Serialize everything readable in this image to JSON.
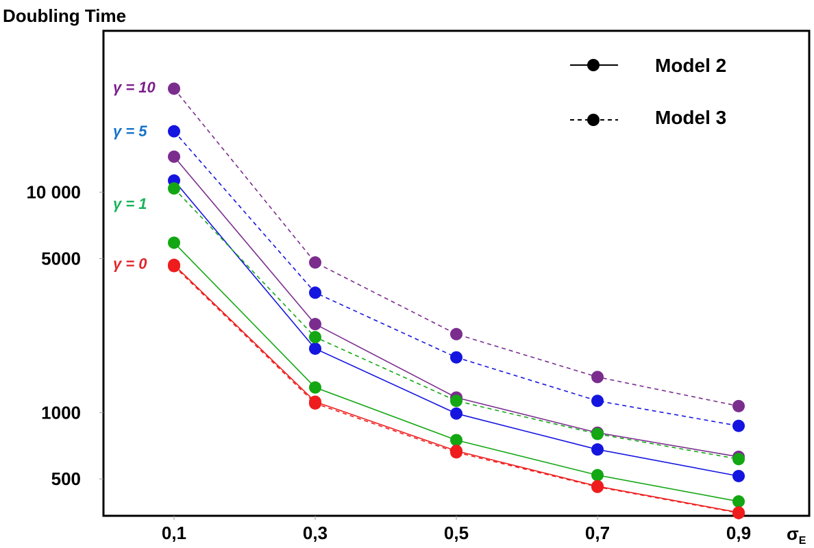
{
  "chart_data": {
    "type": "line",
    "ylabel": "Doubling Time",
    "xlabel_main": "σ",
    "xlabel_sub": "E",
    "y_scale": "log",
    "ylim": [
      340,
      54000
    ],
    "xlim": [
      0,
      1.0
    ],
    "x": [
      0.1,
      0.3,
      0.5,
      0.7,
      0.9
    ],
    "x_tick_labels": [
      "0,1",
      "0,3",
      "0,5",
      "0,7",
      "0,9"
    ],
    "y_ticks": [
      {
        "value": 500,
        "label": "500"
      },
      {
        "value": 1000,
        "label": "1000"
      },
      {
        "value": 5000,
        "label": "5000"
      },
      {
        "value": 10000,
        "label": "10 000"
      }
    ],
    "legend": [
      {
        "label": "Model 2",
        "style": "solid"
      },
      {
        "label": "Model 3",
        "style": "dashed"
      }
    ],
    "gamma_labels": [
      {
        "text": "γ = 10",
        "color": "#7b1f8a",
        "value": 30000
      },
      {
        "text": "γ = 5",
        "color": "#1473c9",
        "value": 19000
      },
      {
        "text": "γ = 1",
        "color": "#18b35a",
        "value": 8900
      },
      {
        "text": "γ = 0",
        "color": "#e0262a",
        "value": 4750
      }
    ],
    "series": [
      {
        "model": "Model 3",
        "gamma": "10",
        "color": "#7b2d8e",
        "style": "dashed",
        "values": [
          29500,
          4800,
          2270,
          1450,
          1070
        ]
      },
      {
        "model": "Model 3",
        "gamma": "5",
        "color": "#1515e0",
        "style": "dashed",
        "values": [
          18900,
          3500,
          1780,
          1130,
          870
        ]
      },
      {
        "model": "Model 2",
        "gamma": "10",
        "color": "#7b2d8e",
        "style": "solid",
        "values": [
          14500,
          2520,
          1170,
          810,
          630
        ]
      },
      {
        "model": "Model 2",
        "gamma": "5",
        "color": "#1515e0",
        "style": "solid",
        "values": [
          11300,
          1950,
          990,
          680,
          515
        ]
      },
      {
        "model": "Model 3",
        "gamma": "1",
        "color": "#13a713",
        "style": "dashed",
        "values": [
          10400,
          2200,
          1130,
          800,
          615
        ]
      },
      {
        "model": "Model 2",
        "gamma": "1",
        "color": "#13a713",
        "style": "solid",
        "values": [
          5900,
          1300,
          750,
          520,
          395
        ]
      },
      {
        "model": "Model 3",
        "gamma": "0",
        "color": "#ee1c1c",
        "style": "dashed",
        "values": [
          4620,
          1100,
          660,
          460,
          350
        ]
      },
      {
        "model": "Model 2",
        "gamma": "0",
        "color": "#ee1c1c",
        "style": "solid",
        "values": [
          4680,
          1120,
          670,
          463,
          352
        ]
      }
    ]
  }
}
